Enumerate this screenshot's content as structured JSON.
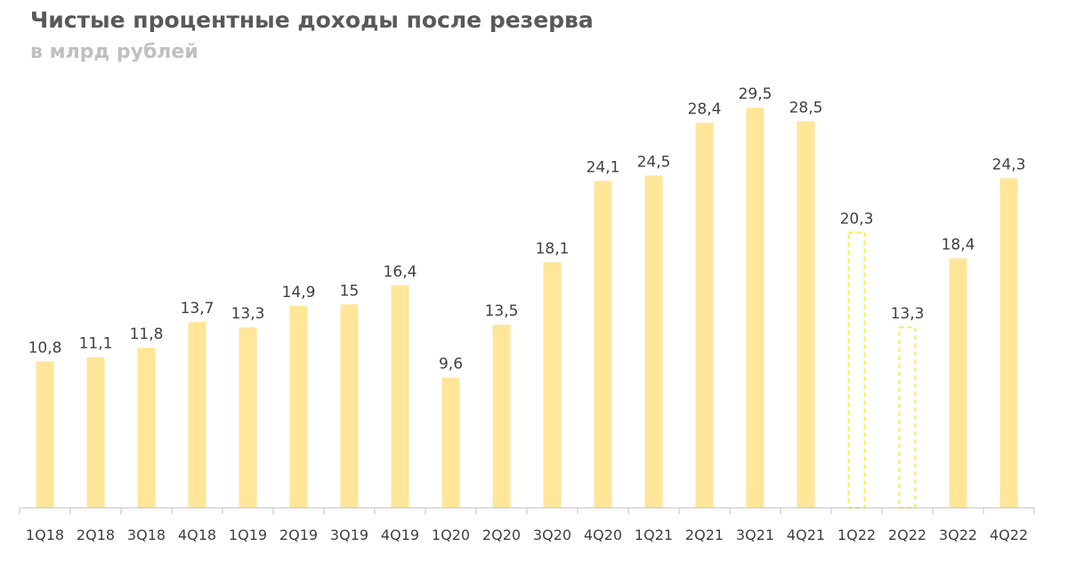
{
  "header": {
    "title": "Чистые процентные доходы после резерва",
    "subtitle": "в млрд рублей"
  },
  "colors": {
    "bar": "#FFE699",
    "bar_dashed_stroke": "#FFE94A",
    "axis": "#bfbfbf",
    "label": "#404040"
  },
  "chart_data": {
    "type": "bar",
    "title": "Чистые процентные доходы после резерва",
    "subtitle": "в млрд рублей",
    "xlabel": "",
    "ylabel": "",
    "ylim": [
      0,
      30
    ],
    "grid": false,
    "legend": "none",
    "categories": [
      "1Q18",
      "2Q18",
      "3Q18",
      "4Q18",
      "1Q19",
      "2Q19",
      "3Q19",
      "4Q19",
      "1Q20",
      "2Q20",
      "3Q20",
      "4Q20",
      "1Q21",
      "2Q21",
      "3Q21",
      "4Q21",
      "1Q22",
      "2Q22",
      "3Q22",
      "4Q22"
    ],
    "values": [
      10.8,
      11.1,
      11.8,
      13.7,
      13.3,
      14.9,
      15,
      16.4,
      9.6,
      13.5,
      18.1,
      24.1,
      24.5,
      28.4,
      29.5,
      28.5,
      20.3,
      13.3,
      18.4,
      24.3
    ],
    "value_labels": [
      "10,8",
      "11,1",
      "11,8",
      "13,7",
      "13,3",
      "14,9",
      "15",
      "16,4",
      "9,6",
      "13,5",
      "18,1",
      "24,1",
      "24,5",
      "28,4",
      "29,5",
      "28,5",
      "20,3",
      "13,3",
      "18,4",
      "24,3"
    ],
    "bar_styles": [
      "solid",
      "solid",
      "solid",
      "solid",
      "solid",
      "solid",
      "solid",
      "solid",
      "solid",
      "solid",
      "solid",
      "solid",
      "solid",
      "solid",
      "solid",
      "solid",
      "dashed",
      "dashed",
      "solid",
      "solid"
    ]
  }
}
